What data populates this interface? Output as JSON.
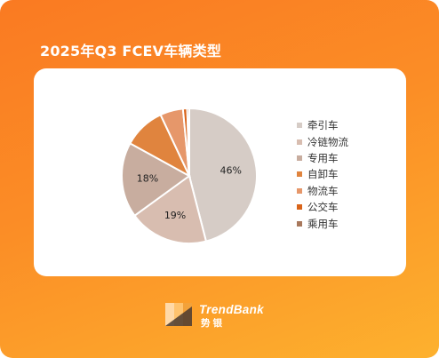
{
  "header": {
    "title": "2025年Q3 FCEV车辆类型"
  },
  "brand": {
    "name": "TrendBank",
    "sub": "势银"
  },
  "chart_data": {
    "type": "pie",
    "title": "2025年Q3 FCEV车辆类型",
    "legend_position": "right",
    "start_angle": "top",
    "direction": "clockwise",
    "slices": [
      {
        "label": "牵引车",
        "value": 46,
        "display": "46%",
        "color": "#d6ccc6"
      },
      {
        "label": "冷链物流",
        "value": 19,
        "display": "19%",
        "color": "#d8bdb0"
      },
      {
        "label": "专用车",
        "value": 18,
        "display": "18%",
        "color": "#c8ad9f"
      },
      {
        "label": "自卸车",
        "value": 10,
        "display": "",
        "color": "#e0843e"
      },
      {
        "label": "物流车",
        "value": 5.5,
        "display": "",
        "color": "#e6976a"
      },
      {
        "label": "公交车",
        "value": 1,
        "display": "",
        "color": "#d9641a"
      },
      {
        "label": "乘用车",
        "value": 0.5,
        "display": "",
        "color": "#a8785c"
      }
    ]
  }
}
